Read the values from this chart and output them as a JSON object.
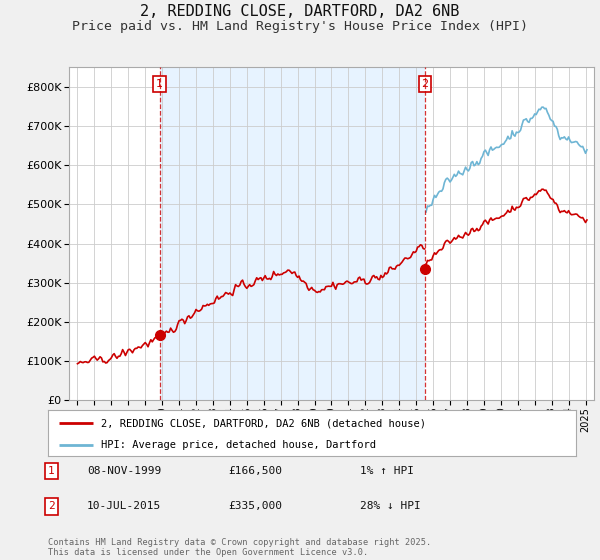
{
  "title": "2, REDDING CLOSE, DARTFORD, DA2 6NB",
  "subtitle": "Price paid vs. HM Land Registry's House Price Index (HPI)",
  "title_fontsize": 11,
  "subtitle_fontsize": 9.5,
  "bg_color": "#f0f0f0",
  "plot_bg_color": "#ffffff",
  "shade_color": "#ddeeff",
  "grid_color": "#cccccc",
  "red_color": "#cc0000",
  "blue_color": "#6eb5d4",
  "purchase1_year": 1999.86,
  "purchase1_price": 166500,
  "purchase2_year": 2015.52,
  "purchase2_price": 335000,
  "legend_line1": "2, REDDING CLOSE, DARTFORD, DA2 6NB (detached house)",
  "legend_line2": "HPI: Average price, detached house, Dartford",
  "note1_label": "1",
  "note1_date": "08-NOV-1999",
  "note1_price": "£166,500",
  "note1_hpi": "1% ↑ HPI",
  "note2_label": "2",
  "note2_date": "10-JUL-2015",
  "note2_price": "£335,000",
  "note2_hpi": "28% ↓ HPI",
  "footer": "Contains HM Land Registry data © Crown copyright and database right 2025.\nThis data is licensed under the Open Government Licence v3.0.",
  "ylim": [
    0,
    850000
  ],
  "xlim_start": 1994.5,
  "xlim_end": 2025.5
}
